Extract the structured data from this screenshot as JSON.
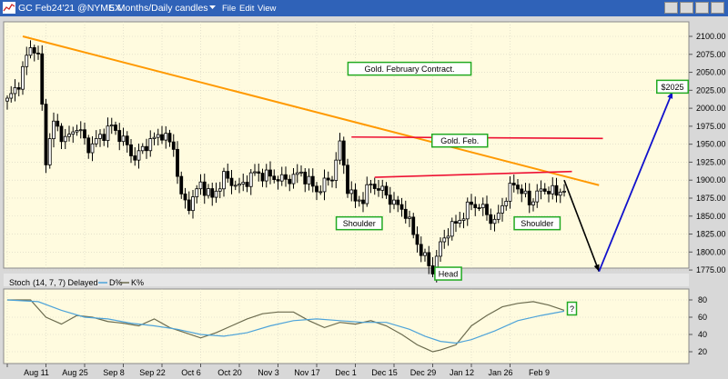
{
  "window": {
    "title": "GC Feb24'21 @NYMEX",
    "period": "5 Months/Daily candles",
    "menu": [
      "File",
      "Edit",
      "View"
    ]
  },
  "colors": {
    "plot_bg": "#fffbdf",
    "candle": "#000000",
    "downtrend": "#ff9900",
    "resistance": "#ee1133",
    "projection_up": "#1111cc",
    "label_border": "#22aa22",
    "d_line": "#4da3d9",
    "k_line": "#6b6b4e",
    "grid": "#d6d2c2"
  },
  "chart_data": [
    {
      "type": "candlestick",
      "title": "",
      "ylim": [
        1753,
        2112
      ],
      "yticks": [
        "2100.00",
        "2075.00",
        "2050.00",
        "2025.00",
        "2000.00",
        "1975.00",
        "1950.00",
        "1925.00",
        "1900.00",
        "1875.00",
        "1850.00",
        "1825.00",
        "1800.00",
        "1775.00"
      ],
      "xticks": [
        "Aug 11",
        "Aug 25",
        "Sep 8",
        "Sep 22",
        "Oct 6",
        "Oct 20",
        "Nov 3",
        "Nov 17",
        "Dec 1",
        "Dec 15",
        "Dec 29",
        "Jan 12",
        "Jan 26",
        "Feb 9"
      ],
      "close_path": [
        [
          0,
          2010
        ],
        [
          3,
          2035
        ],
        [
          6,
          2088
        ],
        [
          8,
          2072
        ],
        [
          10,
          1930
        ],
        [
          12,
          1980
        ],
        [
          15,
          1955
        ],
        [
          18,
          1975
        ],
        [
          21,
          1945
        ],
        [
          24,
          1960
        ],
        [
          27,
          1975
        ],
        [
          30,
          1955
        ],
        [
          33,
          1930
        ],
        [
          36,
          1950
        ],
        [
          40,
          1965
        ],
        [
          43,
          1945
        ],
        [
          45,
          1875
        ],
        [
          47,
          1865
        ],
        [
          50,
          1895
        ],
        [
          53,
          1875
        ],
        [
          56,
          1905
        ],
        [
          60,
          1890
        ],
        [
          64,
          1910
        ],
        [
          68,
          1905
        ],
        [
          72,
          1900
        ],
        [
          76,
          1910
        ],
        [
          80,
          1885
        ],
        [
          84,
          1905
        ],
        [
          86,
          1950
        ],
        [
          88,
          1890
        ],
        [
          90,
          1870
        ],
        [
          92,
          1875
        ],
        [
          94,
          1895
        ],
        [
          97,
          1885
        ],
        [
          100,
          1868
        ],
        [
          103,
          1855
        ],
        [
          105,
          1825
        ],
        [
          107,
          1800
        ],
        [
          109,
          1782
        ],
        [
          110,
          1775
        ],
        [
          112,
          1810
        ],
        [
          114,
          1830
        ],
        [
          117,
          1845
        ],
        [
          120,
          1868
        ],
        [
          123,
          1860
        ],
        [
          126,
          1840
        ],
        [
          129,
          1878
        ],
        [
          131,
          1895
        ],
        [
          133,
          1885
        ],
        [
          135,
          1868
        ],
        [
          137,
          1882
        ],
        [
          140,
          1888
        ],
        [
          142,
          1880
        ],
        [
          144,
          1890
        ]
      ],
      "annotations": [
        {
          "text": "Gold. February Contract.",
          "x": 104,
          "y": 2055
        },
        {
          "text": "Gold. Feb.",
          "x": 117,
          "y": 1955
        },
        {
          "text": "Shoulder",
          "x": 91,
          "y": 1840
        },
        {
          "text": "Head",
          "x": 114,
          "y": 1770
        },
        {
          "text": "Shoulder",
          "x": 137,
          "y": 1840
        },
        {
          "text": "$2025",
          "x": 172,
          "y": 2030
        }
      ],
      "lines": [
        {
          "name": "downtrend",
          "points": [
            [
              4,
              2100
            ],
            [
              153,
              1893
            ]
          ]
        },
        {
          "name": "neckline-top",
          "points": [
            [
              89,
              1960
            ],
            [
              154,
              1958
            ]
          ]
        },
        {
          "name": "neckline",
          "points": [
            [
              95,
              1904
            ],
            [
              146,
              1912
            ]
          ]
        },
        {
          "name": "projection-down",
          "points": [
            [
              144,
              1900
            ],
            [
              153,
              1773
            ]
          ]
        },
        {
          "name": "projection-up",
          "points": [
            [
              153,
              1773
            ],
            [
              172,
              2023
            ]
          ]
        }
      ]
    },
    {
      "type": "line",
      "title": "Stoch",
      "params": "(14, 7, 7) Delayed",
      "legend": [
        "D%",
        "K%"
      ],
      "ylim": [
        8,
        92
      ],
      "yticks": [
        "80",
        "60",
        "40",
        "20"
      ],
      "annotation": "?",
      "series": [
        {
          "name": "K%",
          "points": [
            [
              0,
              80
            ],
            [
              6,
              80
            ],
            [
              10,
              60
            ],
            [
              14,
              52
            ],
            [
              18,
              62
            ],
            [
              22,
              60
            ],
            [
              26,
              55
            ],
            [
              30,
              53
            ],
            [
              34,
              50
            ],
            [
              38,
              58
            ],
            [
              42,
              48
            ],
            [
              46,
              42
            ],
            [
              50,
              36
            ],
            [
              54,
              42
            ],
            [
              58,
              50
            ],
            [
              62,
              58
            ],
            [
              66,
              64
            ],
            [
              70,
              66
            ],
            [
              74,
              66
            ],
            [
              78,
              56
            ],
            [
              82,
              48
            ],
            [
              86,
              54
            ],
            [
              90,
              52
            ],
            [
              94,
              56
            ],
            [
              98,
              50
            ],
            [
              102,
              40
            ],
            [
              106,
              28
            ],
            [
              108,
              24
            ],
            [
              110,
              20
            ],
            [
              112,
              22
            ],
            [
              116,
              28
            ],
            [
              120,
              50
            ],
            [
              124,
              62
            ],
            [
              128,
              72
            ],
            [
              132,
              76
            ],
            [
              136,
              78
            ],
            [
              140,
              74
            ],
            [
              144,
              68
            ]
          ]
        },
        {
          "name": "D%",
          "points": [
            [
              0,
              80
            ],
            [
              8,
              78
            ],
            [
              14,
              68
            ],
            [
              20,
              60
            ],
            [
              26,
              58
            ],
            [
              32,
              53
            ],
            [
              38,
              50
            ],
            [
              44,
              46
            ],
            [
              50,
              40
            ],
            [
              56,
              38
            ],
            [
              62,
              42
            ],
            [
              68,
              50
            ],
            [
              74,
              56
            ],
            [
              80,
              58
            ],
            [
              86,
              56
            ],
            [
              92,
              54
            ],
            [
              98,
              54
            ],
            [
              104,
              46
            ],
            [
              108,
              38
            ],
            [
              112,
              32
            ],
            [
              116,
              30
            ],
            [
              120,
              34
            ],
            [
              126,
              44
            ],
            [
              132,
              56
            ],
            [
              138,
              62
            ],
            [
              144,
              67
            ]
          ]
        }
      ]
    }
  ]
}
